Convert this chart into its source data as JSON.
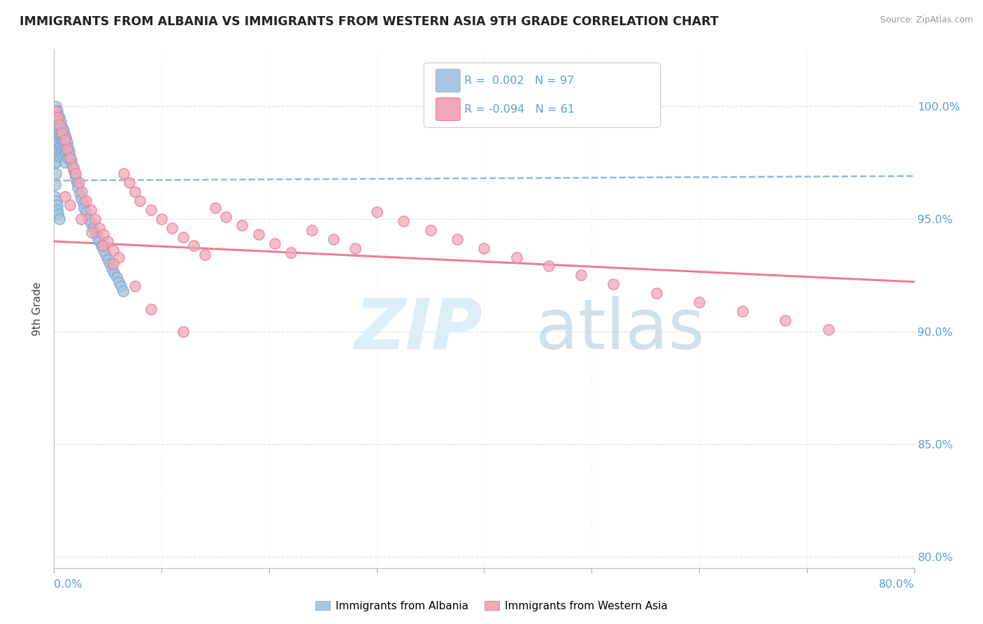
{
  "title": "IMMIGRANTS FROM ALBANIA VS IMMIGRANTS FROM WESTERN ASIA 9TH GRADE CORRELATION CHART",
  "source": "Source: ZipAtlas.com",
  "ylabel": "9th Grade",
  "color_albania": "#a8c4e0",
  "color_albania_edge": "#7aadd4",
  "color_western_asia": "#f4a7b9",
  "color_western_asia_edge": "#e8849a",
  "color_line_albania": "#7ab0d8",
  "color_line_western_asia": "#e8708a",
  "color_grid": "#c8dff0",
  "color_yaxis": "#5aa0d0",
  "watermark_zip_color": "#d5e8f5",
  "watermark_atlas_color": "#c8d8e8",
  "xlim": [
    0.0,
    0.8
  ],
  "ylim": [
    0.795,
    1.025
  ],
  "yticks": [
    0.8,
    0.85,
    0.9,
    0.95,
    1.0
  ],
  "ytick_labels": [
    "80.0%",
    "85.0%",
    "90.0%",
    "95.0%",
    "100.0%"
  ],
  "albania_trend_y0": 0.967,
  "albania_trend_y1": 0.969,
  "western_trend_y0": 0.94,
  "western_trend_y1": 0.922,
  "albania_x": [
    0.001,
    0.001,
    0.001,
    0.001,
    0.002,
    0.002,
    0.002,
    0.002,
    0.002,
    0.002,
    0.002,
    0.002,
    0.002,
    0.002,
    0.003,
    0.003,
    0.003,
    0.003,
    0.003,
    0.003,
    0.003,
    0.003,
    0.004,
    0.004,
    0.004,
    0.004,
    0.004,
    0.004,
    0.005,
    0.005,
    0.005,
    0.005,
    0.005,
    0.005,
    0.006,
    0.006,
    0.006,
    0.006,
    0.006,
    0.007,
    0.007,
    0.007,
    0.007,
    0.008,
    0.008,
    0.008,
    0.008,
    0.009,
    0.009,
    0.009,
    0.01,
    0.01,
    0.01,
    0.01,
    0.011,
    0.011,
    0.012,
    0.012,
    0.013,
    0.013,
    0.014,
    0.015,
    0.016,
    0.017,
    0.018,
    0.019,
    0.02,
    0.021,
    0.022,
    0.024,
    0.025,
    0.027,
    0.028,
    0.03,
    0.032,
    0.034,
    0.036,
    0.038,
    0.04,
    0.042,
    0.044,
    0.046,
    0.048,
    0.05,
    0.052,
    0.054,
    0.056,
    0.058,
    0.06,
    0.062,
    0.064,
    0.001,
    0.002,
    0.003,
    0.003,
    0.004,
    0.005
  ],
  "albania_y": [
    0.995,
    0.985,
    0.975,
    0.965,
    1.0,
    0.998,
    0.995,
    0.993,
    0.99,
    0.988,
    0.985,
    0.98,
    0.975,
    0.97,
    0.998,
    0.995,
    0.992,
    0.99,
    0.987,
    0.985,
    0.982,
    0.978,
    0.996,
    0.993,
    0.99,
    0.987,
    0.984,
    0.98,
    0.995,
    0.992,
    0.989,
    0.986,
    0.982,
    0.978,
    0.993,
    0.99,
    0.987,
    0.983,
    0.979,
    0.991,
    0.988,
    0.985,
    0.98,
    0.99,
    0.986,
    0.982,
    0.978,
    0.989,
    0.985,
    0.98,
    0.987,
    0.983,
    0.979,
    0.975,
    0.986,
    0.981,
    0.984,
    0.979,
    0.982,
    0.977,
    0.98,
    0.978,
    0.976,
    0.974,
    0.972,
    0.97,
    0.968,
    0.966,
    0.964,
    0.961,
    0.959,
    0.957,
    0.955,
    0.953,
    0.95,
    0.948,
    0.946,
    0.944,
    0.942,
    0.94,
    0.938,
    0.936,
    0.934,
    0.932,
    0.93,
    0.928,
    0.926,
    0.924,
    0.922,
    0.92,
    0.918,
    0.96,
    0.958,
    0.956,
    0.954,
    0.952,
    0.95
  ],
  "western_asia_x": [
    0.001,
    0.003,
    0.005,
    0.007,
    0.01,
    0.012,
    0.015,
    0.018,
    0.02,
    0.023,
    0.026,
    0.03,
    0.034,
    0.038,
    0.042,
    0.046,
    0.05,
    0.055,
    0.06,
    0.065,
    0.07,
    0.075,
    0.08,
    0.09,
    0.1,
    0.11,
    0.12,
    0.13,
    0.14,
    0.15,
    0.16,
    0.175,
    0.19,
    0.205,
    0.22,
    0.24,
    0.26,
    0.28,
    0.3,
    0.325,
    0.35,
    0.375,
    0.4,
    0.43,
    0.46,
    0.49,
    0.52,
    0.56,
    0.6,
    0.64,
    0.68,
    0.72,
    0.01,
    0.015,
    0.025,
    0.035,
    0.045,
    0.055,
    0.075,
    0.09,
    0.12
  ],
  "western_asia_y": [
    0.998,
    0.995,
    0.992,
    0.988,
    0.985,
    0.981,
    0.977,
    0.973,
    0.97,
    0.966,
    0.962,
    0.958,
    0.954,
    0.95,
    0.946,
    0.943,
    0.94,
    0.936,
    0.933,
    0.97,
    0.966,
    0.962,
    0.958,
    0.954,
    0.95,
    0.946,
    0.942,
    0.938,
    0.934,
    0.955,
    0.951,
    0.947,
    0.943,
    0.939,
    0.935,
    0.945,
    0.941,
    0.937,
    0.953,
    0.949,
    0.945,
    0.941,
    0.937,
    0.933,
    0.929,
    0.925,
    0.921,
    0.917,
    0.913,
    0.909,
    0.905,
    0.901,
    0.96,
    0.956,
    0.95,
    0.944,
    0.938,
    0.93,
    0.92,
    0.91,
    0.9
  ]
}
